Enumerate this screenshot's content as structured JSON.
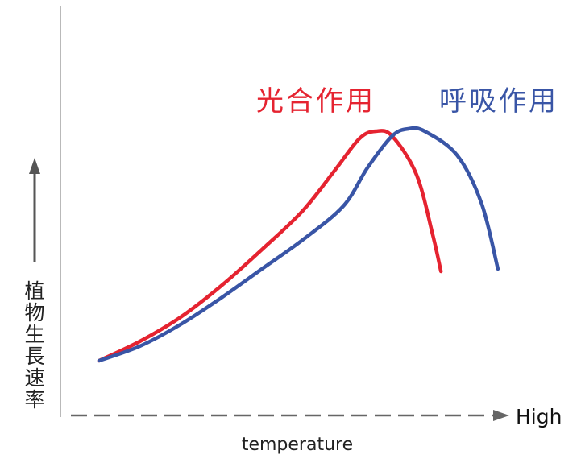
{
  "chart_data": {
    "type": "line",
    "title": "",
    "xlabel": "temperature",
    "x_end_label": "High",
    "ylabel": "植物生長速率",
    "xlim": [
      0,
      100
    ],
    "ylim": [
      0,
      100
    ],
    "grid": false,
    "legend": "inline labels above curves",
    "series": [
      {
        "name": "光合作用",
        "color": "#e52330",
        "x": [
          0,
          10,
          20,
          30,
          40,
          50,
          58,
          64,
          68,
          72,
          78,
          82,
          84
        ],
        "y": [
          0,
          8,
          18,
          31,
          46,
          62,
          79,
          92,
          95,
          93,
          77,
          52,
          37
        ]
      },
      {
        "name": "呼吸作用",
        "color": "#3955a6",
        "x": [
          0,
          10,
          20,
          30,
          40,
          50,
          60,
          66,
          72,
          76,
          80,
          88,
          94,
          98
        ],
        "y": [
          0,
          6,
          15,
          26,
          38,
          50,
          64,
          80,
          93,
          96,
          95,
          85,
          65,
          38
        ]
      }
    ]
  }
}
